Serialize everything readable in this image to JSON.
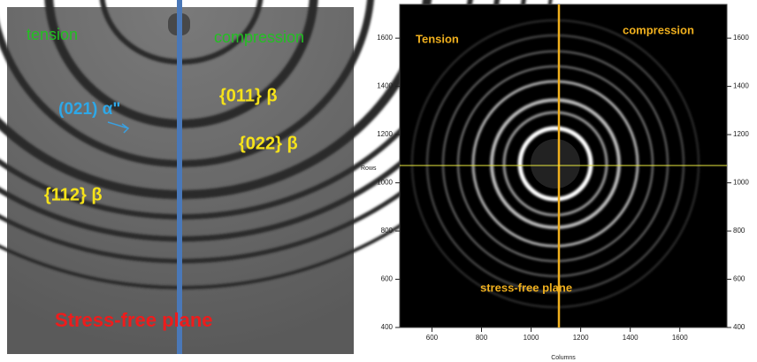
{
  "left_panel": {
    "labels": {
      "tension": "tension",
      "compression": "compression",
      "alpha": "(021) α\"",
      "b011": "{011} β",
      "b022": "{022} β",
      "b112": "{112} β",
      "plane": "Stress-free  plane"
    }
  },
  "right_panel": {
    "labels": {
      "tension": "Tension",
      "compression": "compression",
      "plane": "stress-free  plane"
    },
    "xlabel": "Columns",
    "ylabel": "Rows",
    "xlim": [
      470,
      1790
    ],
    "ylim": [
      400,
      1740
    ],
    "xticks": [
      600,
      800,
      1000,
      1200,
      1400,
      1600
    ],
    "yticks": [
      400,
      600,
      800,
      1000,
      1200,
      1400,
      1600
    ]
  }
}
